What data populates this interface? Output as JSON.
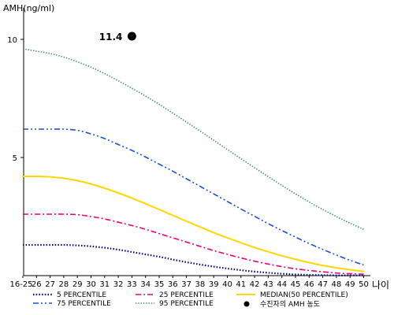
{
  "chart_data": {
    "type": "line",
    "ylabel": "AMH(ng/ml)",
    "xlabel": "나이",
    "ylim": [
      0,
      11.5
    ],
    "y_ticks": [
      5,
      10
    ],
    "x": [
      "16-25",
      "26",
      "27",
      "28",
      "29",
      "30",
      "31",
      "32",
      "33",
      "34",
      "35",
      "36",
      "37",
      "38",
      "39",
      "40",
      "41",
      "42",
      "43",
      "44",
      "45",
      "46",
      "47",
      "48",
      "49",
      "50"
    ],
    "series": [
      {
        "name": "5 PERCENTILE",
        "color": "#000080",
        "dash": "dotted",
        "values": [
          1.3,
          1.3,
          1.3,
          1.3,
          1.28,
          1.24,
          1.18,
          1.1,
          1.0,
          0.9,
          0.8,
          0.68,
          0.57,
          0.47,
          0.38,
          0.3,
          0.23,
          0.17,
          0.12,
          0.08,
          0.05,
          0.03,
          0.02,
          0.01,
          0.01,
          0.01
        ]
      },
      {
        "name": "25 PERCENTILE",
        "color": "#e6007e",
        "dash": "dashdot",
        "values": [
          2.6,
          2.6,
          2.6,
          2.6,
          2.58,
          2.5,
          2.4,
          2.26,
          2.12,
          1.96,
          1.78,
          1.6,
          1.42,
          1.24,
          1.06,
          0.9,
          0.75,
          0.61,
          0.49,
          0.38,
          0.29,
          0.22,
          0.16,
          0.11,
          0.08,
          0.06
        ]
      },
      {
        "name": "MEDIAN(50 PERCENTILE)",
        "color": "#ffd700",
        "dash": "solid",
        "values": [
          4.2,
          4.2,
          4.18,
          4.12,
          4.02,
          3.88,
          3.7,
          3.5,
          3.28,
          3.04,
          2.8,
          2.55,
          2.3,
          2.06,
          1.82,
          1.6,
          1.39,
          1.19,
          1.01,
          0.84,
          0.69,
          0.55,
          0.43,
          0.33,
          0.25,
          0.18
        ]
      },
      {
        "name": "75 PERCENTILE",
        "color": "#1e50c8",
        "dash": "dashdotdot",
        "values": [
          6.2,
          6.2,
          6.2,
          6.2,
          6.15,
          6.0,
          5.8,
          5.55,
          5.3,
          5.02,
          4.72,
          4.42,
          4.1,
          3.78,
          3.46,
          3.14,
          2.82,
          2.51,
          2.2,
          1.91,
          1.63,
          1.36,
          1.11,
          0.87,
          0.65,
          0.45
        ]
      },
      {
        "name": "95 PERCENTILE",
        "color": "#2e8b57",
        "dash": "dense-dotted",
        "values": [
          9.6,
          9.5,
          9.4,
          9.25,
          9.05,
          8.82,
          8.55,
          8.25,
          7.93,
          7.6,
          7.25,
          6.88,
          6.5,
          6.12,
          5.73,
          5.34,
          4.95,
          4.57,
          4.19,
          3.82,
          3.46,
          3.12,
          2.8,
          2.5,
          2.22,
          1.96
        ]
      }
    ],
    "highlight_point": {
      "label": "수진자의 AMH 농도",
      "x": "33",
      "y": 11.4,
      "value_label": "11.4"
    },
    "legend_placement": "bottom"
  }
}
